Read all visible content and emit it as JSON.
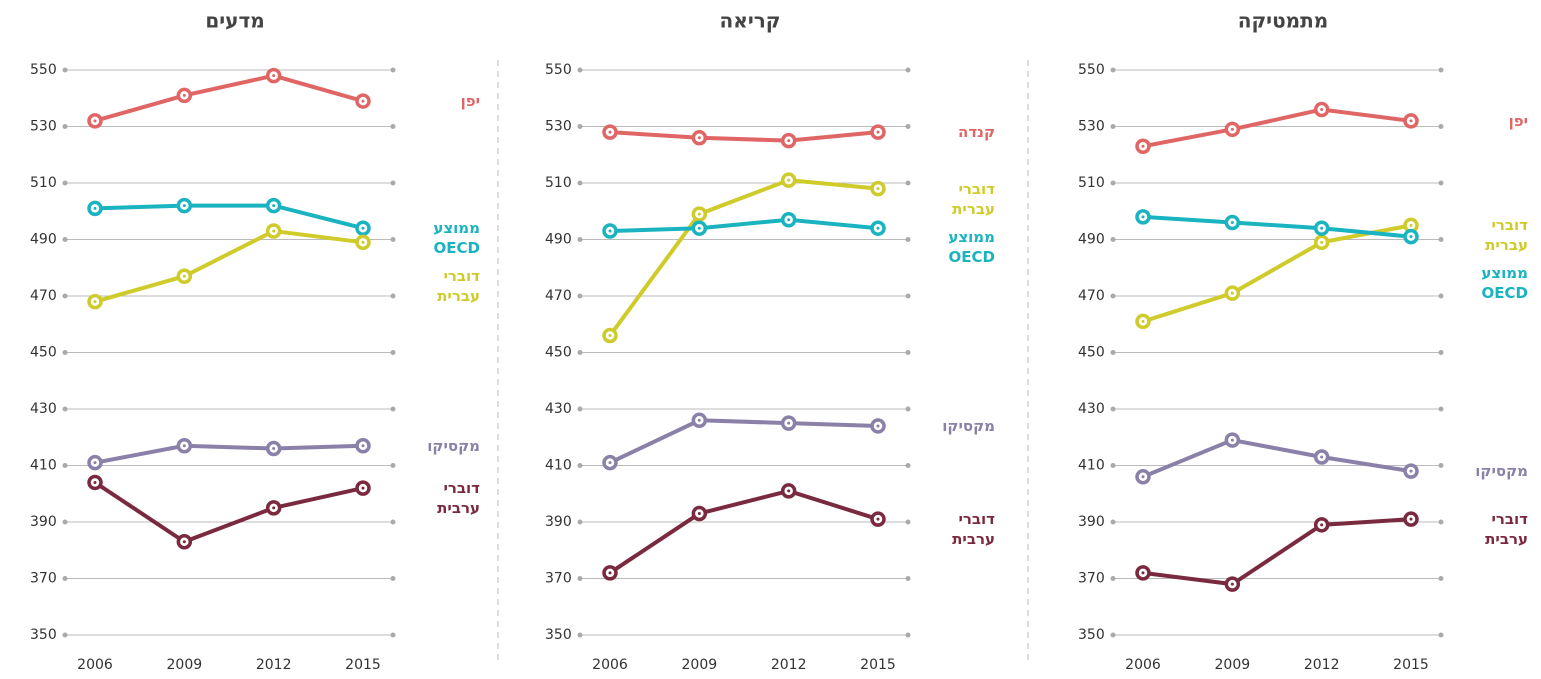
{
  "chart_data": [
    {
      "type": "line",
      "title": "מדעים",
      "categories": [
        "2006",
        "2009",
        "2012",
        "2015"
      ],
      "ylim": [
        350,
        550
      ],
      "yticks": [
        350,
        370,
        390,
        410,
        430,
        450,
        470,
        490,
        510,
        530,
        550
      ],
      "grid": true,
      "series": [
        {
          "name": "יפן",
          "color": "#e06666",
          "values": [
            532,
            541,
            548,
            539
          ]
        },
        {
          "name": "ממוצע OECD",
          "color": "#1ab3c0",
          "values": [
            501,
            502,
            502,
            494
          ]
        },
        {
          "name": "דוברי עברית",
          "color": "#cfcb2a",
          "values": [
            468,
            477,
            493,
            489
          ]
        },
        {
          "name": "מקסיקו",
          "color": "#8a80a8",
          "values": [
            411,
            417,
            416,
            417
          ]
        },
        {
          "name": "דוברי ערבית",
          "color": "#7a2a3e",
          "values": [
            404,
            383,
            395,
            402
          ]
        }
      ]
    },
    {
      "type": "line",
      "title": "קריאה",
      "categories": [
        "2006",
        "2009",
        "2012",
        "2015"
      ],
      "ylim": [
        350,
        550
      ],
      "yticks": [
        350,
        370,
        390,
        410,
        430,
        450,
        470,
        490,
        510,
        530,
        550
      ],
      "grid": true,
      "series": [
        {
          "name": "קנדה",
          "color": "#e06666",
          "values": [
            528,
            526,
            525,
            528
          ]
        },
        {
          "name": "דוברי עברית",
          "color": "#cfcb2a",
          "values": [
            456,
            499,
            511,
            508
          ]
        },
        {
          "name": "ממוצע OECD",
          "color": "#1ab3c0",
          "values": [
            493,
            494,
            497,
            494
          ]
        },
        {
          "name": "מקסיקו",
          "color": "#8a80a8",
          "values": [
            411,
            426,
            425,
            424
          ]
        },
        {
          "name": "דוברי ערבית",
          "color": "#7a2a3e",
          "values": [
            372,
            393,
            401,
            391
          ]
        }
      ]
    },
    {
      "type": "line",
      "title": "מתמטיקה",
      "categories": [
        "2006",
        "2009",
        "2012",
        "2015"
      ],
      "ylim": [
        350,
        550
      ],
      "yticks": [
        350,
        370,
        390,
        410,
        430,
        450,
        470,
        490,
        510,
        530,
        550
      ],
      "grid": true,
      "series": [
        {
          "name": "יפן",
          "color": "#e06666",
          "values": [
            523,
            529,
            536,
            532
          ]
        },
        {
          "name": "דוברי עברית",
          "color": "#cfcb2a",
          "values": [
            461,
            471,
            489,
            495
          ]
        },
        {
          "name": "ממוצע OECD",
          "color": "#1ab3c0",
          "values": [
            498,
            496,
            494,
            491
          ]
        },
        {
          "name": "מקסיקו",
          "color": "#8a80a8",
          "values": [
            406,
            419,
            413,
            408
          ]
        },
        {
          "name": "דוברי ערבית",
          "color": "#7a2a3e",
          "values": [
            372,
            368,
            389,
            391
          ]
        }
      ]
    }
  ]
}
